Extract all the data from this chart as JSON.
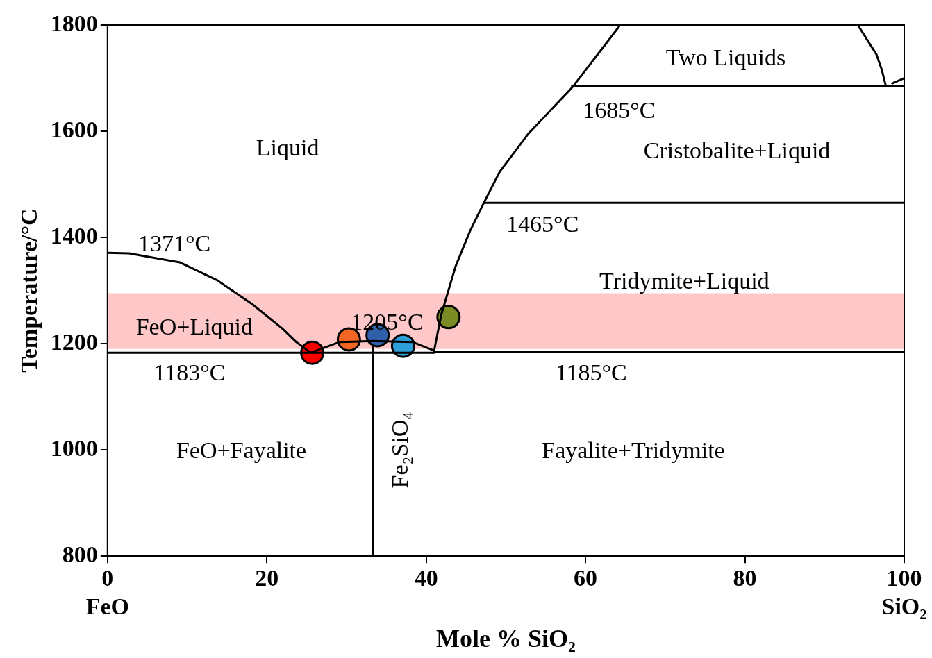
{
  "chart_data": {
    "type": "line",
    "xlabel": "Mole % SiO₂",
    "ylabel": "Temperature/°C",
    "xlim": [
      0,
      100
    ],
    "ylim": [
      800,
      1800
    ],
    "xticks": [
      {
        "value": 0,
        "label": "0\nFeO"
      },
      20,
      40,
      60,
      80,
      {
        "value": 100,
        "label": "100\nSiO₂"
      }
    ],
    "yticks": [
      800,
      1000,
      1200,
      1400,
      1600,
      1800
    ],
    "grid": false,
    "legend": false,
    "line_style": "solid",
    "bands": [
      {
        "axis": "y",
        "from": 1190,
        "to": 1295,
        "color": "#ffc8c8"
      }
    ],
    "series": [
      {
        "marker": "none",
        "color": "#000000",
        "x": [
          0,
          2.7,
          9.1,
          13.7,
          18.2,
          21.9,
          23.7,
          25.5,
          29.1,
          33.2,
          38.3,
          41,
          41.9,
          43.7,
          45.5,
          47.2,
          49.2,
          52.8,
          58.3,
          61.9,
          64.2
        ],
        "values": [
          1371,
          1370,
          1353,
          1320,
          1274,
          1229,
          1203,
          1183,
          1203,
          1205,
          1203,
          1187,
          1255,
          1346,
          1412,
          1464,
          1523,
          1595,
          1682,
          1752,
          1797
        ]
      },
      {
        "marker": "none",
        "color": "#000000",
        "x": [
          0,
          41,
          41,
          100
        ],
        "values": [
          1183,
          1183,
          1185,
          1185
        ]
      },
      {
        "marker": "none",
        "color": "#000000",
        "x": [
          47.2,
          100
        ],
        "values": [
          1465,
          1465
        ]
      },
      {
        "marker": "none",
        "color": "#000000",
        "x": [
          58.3,
          100
        ],
        "values": [
          1685,
          1685
        ]
      },
      {
        "marker": "none",
        "color": "#000000",
        "x": [
          33.3,
          33.3
        ],
        "values": [
          800,
          1195
        ]
      },
      {
        "marker": "none",
        "color": "#000000",
        "x": [
          94.3,
          96.5,
          97.2,
          97.7
        ],
        "values": [
          1797,
          1745,
          1715,
          1685
        ]
      },
      {
        "marker": "none",
        "color": "#000000",
        "x": [
          98.5,
          100
        ],
        "values": [
          1690,
          1700
        ]
      },
      {
        "type": "scatter",
        "marker": "circle",
        "x": [
          25.7,
          30.3,
          33.9,
          37.1,
          42.8
        ],
        "values": [
          1183,
          1208,
          1216,
          1196,
          1250
        ],
        "colors": [
          "#ff0000",
          "#f26522",
          "#2e5fa8",
          "#2d9fd9",
          "#7a8c23"
        ]
      }
    ],
    "annotations": [
      "Two Liquids",
      "1685°C",
      "Cristobalite+Liquid",
      "Liquid",
      "1465°C",
      "1371°C",
      "Tridymite+Liquid",
      "FeO+Liquid",
      {
        "text": "1205°C",
        "x": 35.1,
        "y": 1238
      },
      "1183°C",
      "1185°C",
      "FeO+Fayalite",
      "Fe₂SiO₄",
      "Fayalite+Tridymite"
    ]
  }
}
